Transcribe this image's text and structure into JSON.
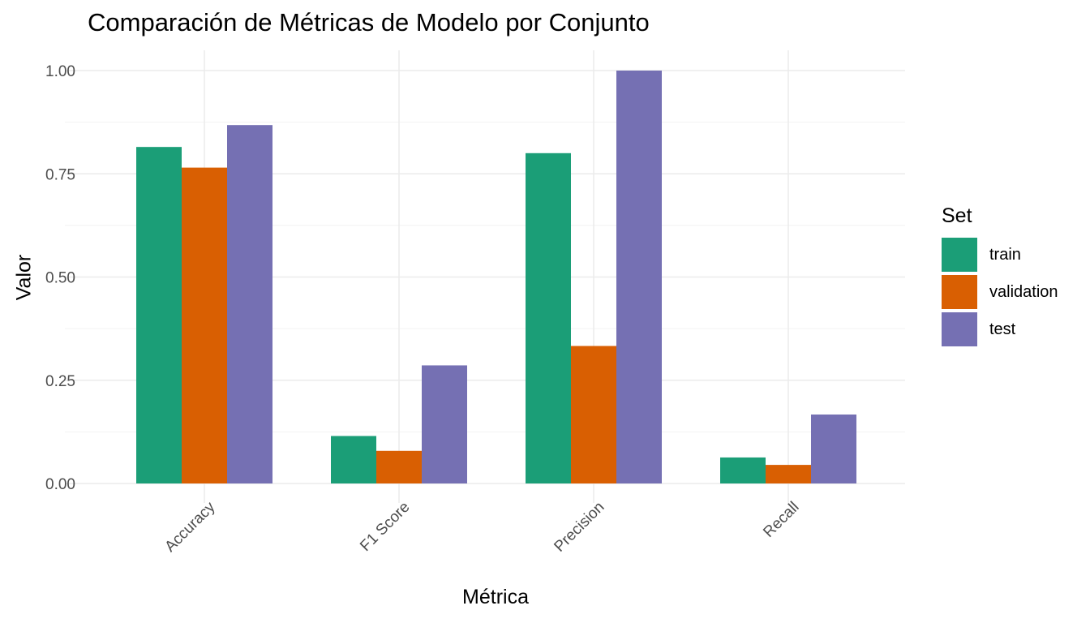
{
  "chart_data": {
    "type": "bar",
    "title": "Comparación de Métricas de Modelo por Conjunto",
    "xlabel": "Métrica",
    "ylabel": "Valor",
    "categories": [
      "Accuracy",
      "F1 Score",
      "Precision",
      "Recall"
    ],
    "series": [
      {
        "name": "train",
        "color": "#1b9e77",
        "values": [
          0.815,
          0.115,
          0.8,
          0.063
        ]
      },
      {
        "name": "validation",
        "color": "#d95f02",
        "values": [
          0.765,
          0.079,
          0.333,
          0.045
        ]
      },
      {
        "name": "test",
        "color": "#7570b3",
        "values": [
          0.868,
          0.286,
          1.0,
          0.167
        ]
      }
    ],
    "ylim": [
      0,
      1
    ],
    "yticks": [
      "0.00",
      "0.25",
      "0.50",
      "0.75",
      "1.00"
    ],
    "legend_title": "Set",
    "legend_position": "right",
    "grid": true
  }
}
